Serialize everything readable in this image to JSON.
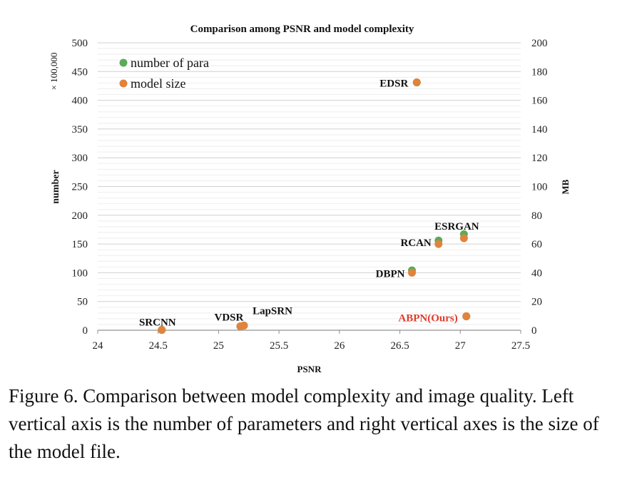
{
  "chart_data": {
    "type": "scatter",
    "title": "Comparison among PSNR and model complexity",
    "xlabel": "PSNR",
    "ylabel_left": "number",
    "ylabel_left_multiplier": "× 100,000",
    "ylabel_right": "MB",
    "xlim": [
      24,
      27.5
    ],
    "ylim_left": [
      0,
      500
    ],
    "ylim_right": [
      0,
      200
    ],
    "x_ticks": [
      "24",
      "24.5",
      "25",
      "25.5",
      "26",
      "26.5",
      "27",
      "27.5"
    ],
    "y_left_ticks": [
      "0",
      "50",
      "100",
      "150",
      "200",
      "250",
      "300",
      "350",
      "400",
      "450",
      "500"
    ],
    "y_right_ticks": [
      "0",
      "20",
      "40",
      "60",
      "80",
      "100",
      "120",
      "140",
      "160",
      "180",
      "200"
    ],
    "legend": [
      "number of para",
      "model size"
    ],
    "colors": {
      "para": "#5aaa5a",
      "size": "#e0833c",
      "ours_label": "#e03a2a",
      "grid_major": "#d0d0d0",
      "grid_minor": "#eeeeee",
      "axis": "#909090"
    },
    "series": [
      {
        "name": "number of para",
        "axis": "left",
        "points": [
          {
            "x": 24.53,
            "y": 0.6
          },
          {
            "x": 25.18,
            "y": 6.7
          },
          {
            "x": 25.21,
            "y": 8.1
          },
          {
            "x": 26.6,
            "y": 104
          },
          {
            "x": 26.82,
            "y": 156
          },
          {
            "x": 27.03,
            "y": 167
          },
          {
            "x": 26.64,
            "y": 431
          },
          {
            "x": 27.05,
            "y": 24
          }
        ]
      },
      {
        "name": "model size",
        "axis": "right",
        "points": [
          {
            "x": 24.53,
            "y": 0.2
          },
          {
            "x": 25.18,
            "y": 2.7
          },
          {
            "x": 25.21,
            "y": 3.3
          },
          {
            "x": 26.6,
            "y": 40
          },
          {
            "x": 26.82,
            "y": 60
          },
          {
            "x": 27.03,
            "y": 64
          },
          {
            "x": 26.64,
            "y": 172.5
          },
          {
            "x": 27.05,
            "y": 9.8
          }
        ]
      }
    ],
    "annotations": [
      {
        "text": "SRCNN",
        "x": 24.53,
        "y_mb": 0.2,
        "highlight": false
      },
      {
        "text": "VDSR",
        "x": 25.18,
        "y_mb": 2.7,
        "highlight": false
      },
      {
        "text": "LapSRN",
        "x": 25.21,
        "y_mb": 3.3,
        "highlight": false
      },
      {
        "text": "DBPN",
        "x": 26.6,
        "y_mb": 40,
        "highlight": false
      },
      {
        "text": "RCAN",
        "x": 26.82,
        "y_mb": 60,
        "highlight": false
      },
      {
        "text": "ESRGAN",
        "x": 27.03,
        "y_mb": 64,
        "highlight": false
      },
      {
        "text": "EDSR",
        "x": 26.64,
        "y_mb": 172.5,
        "highlight": false
      },
      {
        "text": "ABPN(Ours)",
        "x": 27.05,
        "y_mb": 9.8,
        "highlight": true
      }
    ]
  },
  "caption": "Figure 6. Comparison between model complexity and image quality. Left vertical axis is the number of parameters and right vertical axes is the size of the model file."
}
